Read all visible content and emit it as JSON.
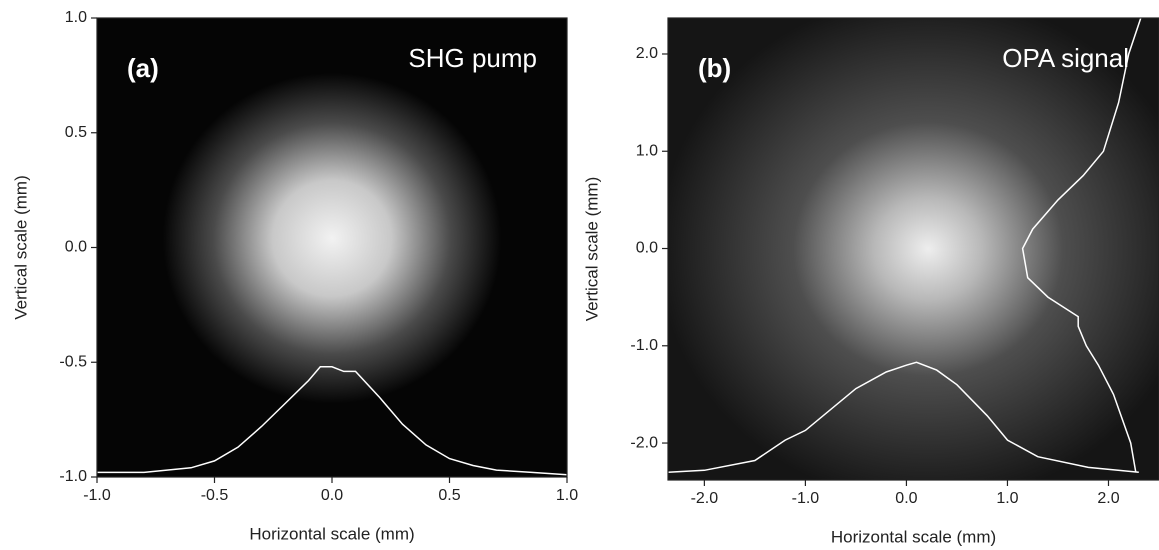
{
  "chart_data": [
    {
      "type": "image",
      "label": "(a)",
      "annotation": "SHG pump",
      "x_label": "Horizontal scale (mm)",
      "y_label": "Vertical scale (mm)",
      "xlim": [
        -1,
        1
      ],
      "ylim": [
        -1,
        1
      ],
      "xticks": [
        {
          "value": -1,
          "label": "-1.0"
        },
        -0.5,
        {
          "value": 0,
          "label": "0.0"
        },
        0.5,
        {
          "value": 1,
          "label": "1.0"
        }
      ],
      "yticks": [
        {
          "value": -1,
          "label": "-1.0"
        },
        -0.5,
        {
          "value": 0,
          "label": "0.0"
        },
        0.5,
        {
          "value": 1,
          "label": "1.0"
        }
      ],
      "series": [
        {
          "color": "#ffffff",
          "x": [
            -1.0,
            -0.8,
            -0.6,
            -0.5,
            -0.4,
            -0.3,
            -0.2,
            -0.1,
            -0.05,
            0.0,
            0.05,
            0.1,
            0.2,
            0.3,
            0.4,
            0.5,
            0.6,
            0.7,
            0.85,
            1.0
          ],
          "values": [
            -0.98,
            -0.98,
            -0.96,
            -0.93,
            -0.87,
            -0.78,
            -0.68,
            -0.58,
            -0.52,
            -0.52,
            -0.54,
            -0.54,
            -0.65,
            -0.77,
            -0.86,
            -0.92,
            -0.95,
            -0.97,
            -0.98,
            -0.99
          ]
        }
      ]
    },
    {
      "type": "image",
      "label": "(b)",
      "annotation": "OPA signal",
      "x_label": "Horizontal scale (mm)",
      "y_label": "Vertical scale (mm)",
      "xlim": [
        -2.36,
        2.5
      ],
      "ylim": [
        -2.38,
        2.37
      ],
      "xticks": [
        {
          "value": -2,
          "label": "-2.0"
        },
        {
          "value": -1,
          "label": "-1.0"
        },
        {
          "value": 0,
          "label": "0.0"
        },
        {
          "value": 1,
          "label": "1.0"
        },
        {
          "value": 2,
          "label": "2.0"
        }
      ],
      "yticks": [
        {
          "value": -2,
          "label": "-2.0"
        },
        {
          "value": -1,
          "label": "-1.0"
        },
        {
          "value": 0,
          "label": "0.0"
        },
        {
          "value": 1,
          "label": "1.0"
        },
        {
          "value": 2,
          "label": "2.0"
        }
      ],
      "series": [
        {
          "color": "#ffffff",
          "x": [
            -2.36,
            -2.0,
            -1.5,
            -1.2,
            -1.0,
            -0.5,
            -0.2,
            0.0,
            0.1,
            0.3,
            0.5,
            0.8,
            1.0,
            1.3,
            1.8,
            2.3
          ],
          "values": [
            -2.3,
            -2.28,
            -2.18,
            -1.97,
            -1.87,
            -1.44,
            -1.27,
            -1.2,
            -1.17,
            -1.25,
            -1.4,
            -1.72,
            -1.97,
            -2.14,
            -2.25,
            -2.3
          ]
        },
        {
          "color": "#ffffff",
          "x": [
            2.32,
            2.2,
            2.1,
            1.95,
            1.75,
            1.5,
            1.25,
            1.15,
            1.2,
            1.4,
            1.7,
            1.7,
            1.78,
            1.9,
            2.05,
            2.22,
            2.27
          ],
          "values": [
            2.37,
            2.0,
            1.5,
            1.0,
            0.75,
            0.5,
            0.2,
            0.0,
            -0.3,
            -0.5,
            -0.7,
            -0.8,
            -1.0,
            -1.2,
            -1.5,
            -2.0,
            -2.3
          ]
        }
      ]
    }
  ]
}
